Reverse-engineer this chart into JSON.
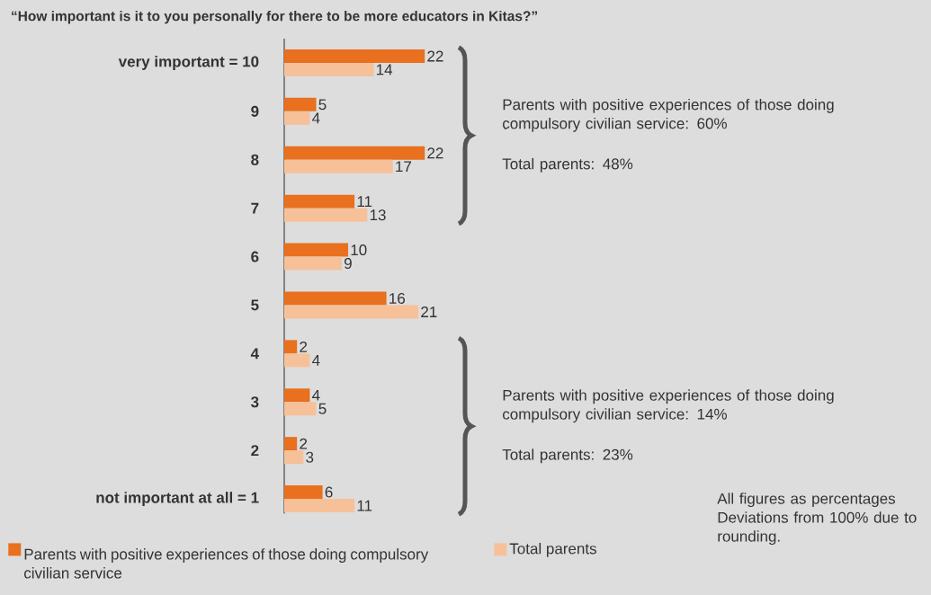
{
  "chart_data": {
    "type": "bar",
    "orientation": "horizontal",
    "title": "“How important is it to you personally for there to be more educators in Kitas?”",
    "categories": [
      "very important = 10",
      "9",
      "8",
      "7",
      "6",
      "5",
      "4",
      "3",
      "2",
      "not important at all = 1"
    ],
    "series": [
      {
        "name": "Parents with positive experiences of those doing compulsory civilian service",
        "color": "#e8701e",
        "values": [
          22,
          5,
          22,
          11,
          10,
          16,
          2,
          4,
          2,
          6
        ]
      },
      {
        "name": "Total parents",
        "color": "#f6c199",
        "values": [
          14,
          4,
          17,
          13,
          9,
          21,
          4,
          5,
          3,
          11
        ]
      }
    ],
    "data_labels": true,
    "legend": "bottom",
    "tick_labels": "y",
    "annotations": [
      "Parents with positive experiences of those doing compulsory civilian service: 60%",
      "Total parents: 48%",
      "Parents with positive experiences of those doing compulsory civilian service: 14%",
      "Total parents: 23%",
      "All figures as percentages",
      "Deviations from 100% due to rounding."
    ]
  }
}
